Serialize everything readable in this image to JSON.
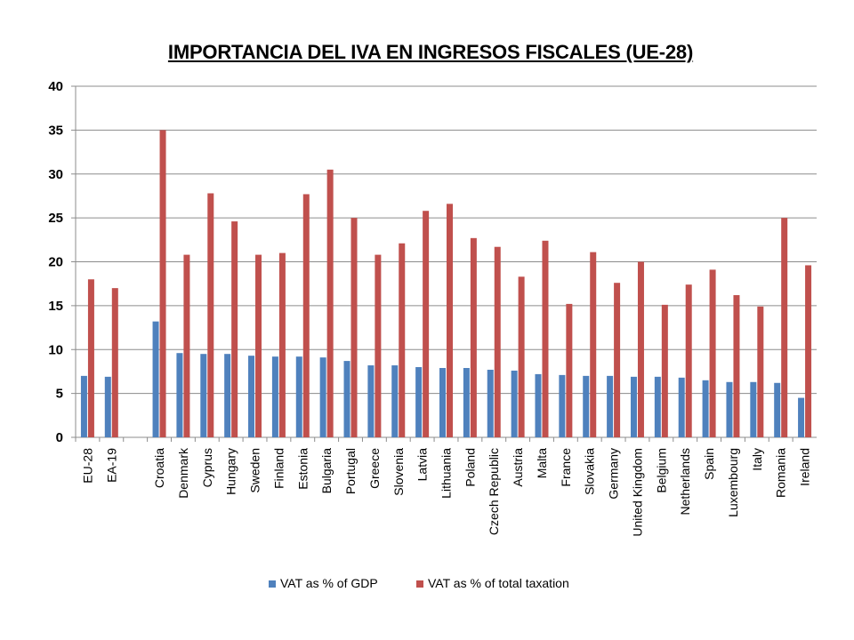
{
  "chart_data": {
    "type": "bar",
    "title": "IMPORTANCIA DEL IVA EN INGRESOS FISCALES (UE-28)",
    "xlabel": "",
    "ylabel": "",
    "ylim": [
      0,
      40
    ],
    "yticks": [
      0,
      5,
      10,
      15,
      20,
      25,
      30,
      35,
      40
    ],
    "grid": true,
    "legend_position": "bottom",
    "categories": [
      "EU-28",
      "EA-19",
      "",
      "Croatia",
      "Denmark",
      "Cyprus",
      "Hungary",
      "Sweden",
      "Finland",
      "Estonia",
      "Bulgaria",
      "Portugal",
      "Greece",
      "Slovenia",
      "Latvia",
      "Lithuania",
      "Poland",
      "Czech Republic",
      "Austria",
      "Malta",
      "France",
      "Slovakia",
      "Germany",
      "United Kingdom",
      "Belgium",
      "Netherlands",
      "Spain",
      "Luxembourg",
      "Italy",
      "Romania",
      "Ireland"
    ],
    "series": [
      {
        "name": "VAT as % of GDP",
        "color": "#4F81BD",
        "values": [
          7.0,
          6.9,
          null,
          13.2,
          9.6,
          9.5,
          9.5,
          9.3,
          9.2,
          9.2,
          9.1,
          8.7,
          8.2,
          8.2,
          8.0,
          7.9,
          7.9,
          7.7,
          7.6,
          7.2,
          7.1,
          7.0,
          7.0,
          6.9,
          6.9,
          6.8,
          6.5,
          6.3,
          6.3,
          6.2,
          4.5
        ]
      },
      {
        "name": "VAT as % of total taxation",
        "color": "#C0504D",
        "values": [
          18.0,
          17.0,
          null,
          35.0,
          20.8,
          27.8,
          24.6,
          20.8,
          21.0,
          27.7,
          30.5,
          25.0,
          20.8,
          22.1,
          25.8,
          26.6,
          22.7,
          21.7,
          18.3,
          22.4,
          15.2,
          21.1,
          17.6,
          20.0,
          15.1,
          17.4,
          19.1,
          16.2,
          14.9,
          25.0,
          19.6
        ]
      }
    ]
  }
}
